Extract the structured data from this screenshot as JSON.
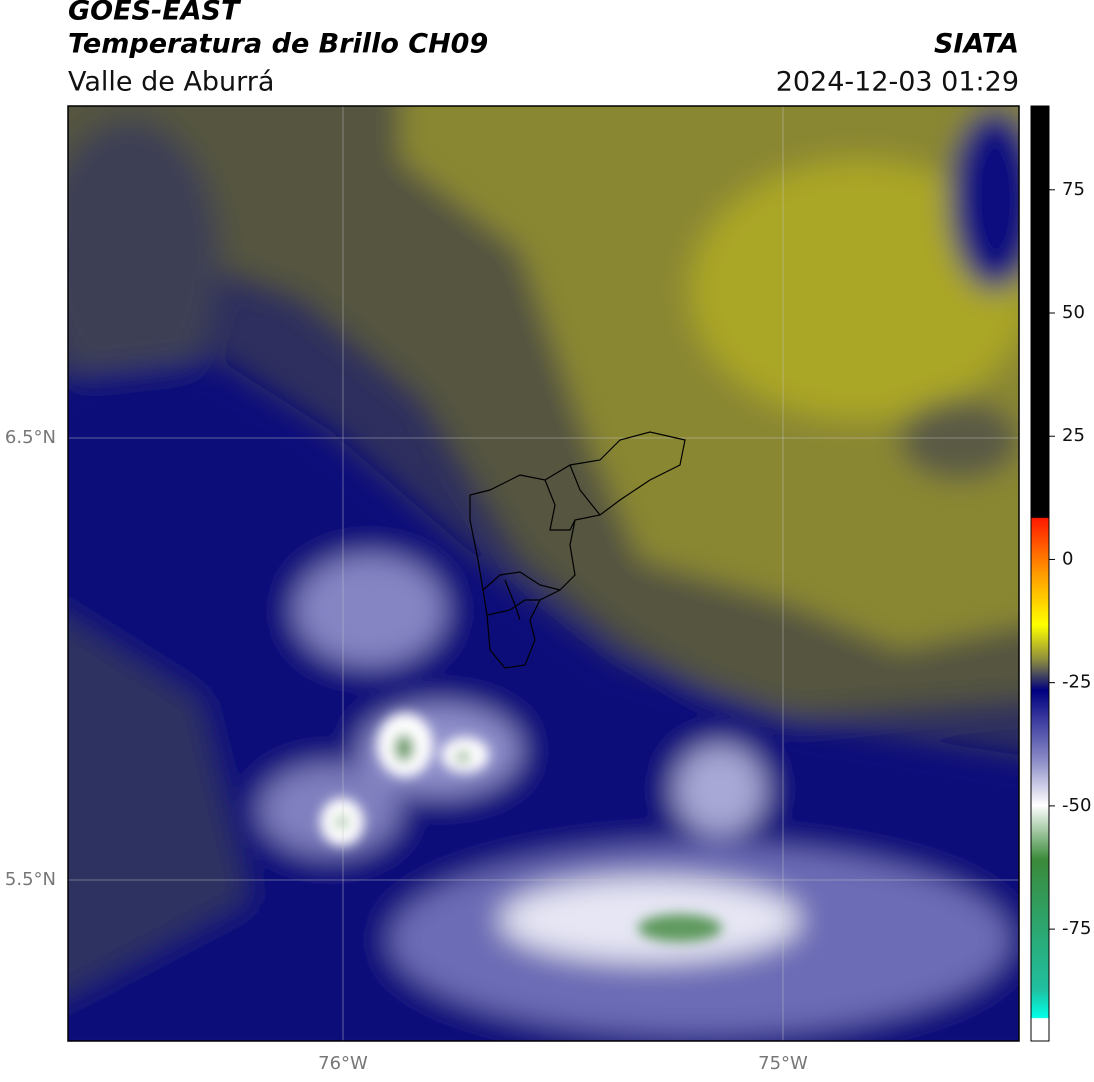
{
  "header": {
    "satellite": "GOES-EAST",
    "product": "Temperatura de Brillo CH09",
    "region": "Valle de Aburrá",
    "agency": "SIATA",
    "datetime": "2024-12-03 01:29"
  },
  "map": {
    "lat_ticks": [
      "6.5°N",
      "5.5°N"
    ],
    "lon_ticks": [
      "76°W",
      "75°W"
    ]
  },
  "colorbar": {
    "lim": [
      -97.7,
      92
    ],
    "ticks": [
      75,
      50,
      25,
      0,
      -25,
      -50,
      -75
    ]
  }
}
